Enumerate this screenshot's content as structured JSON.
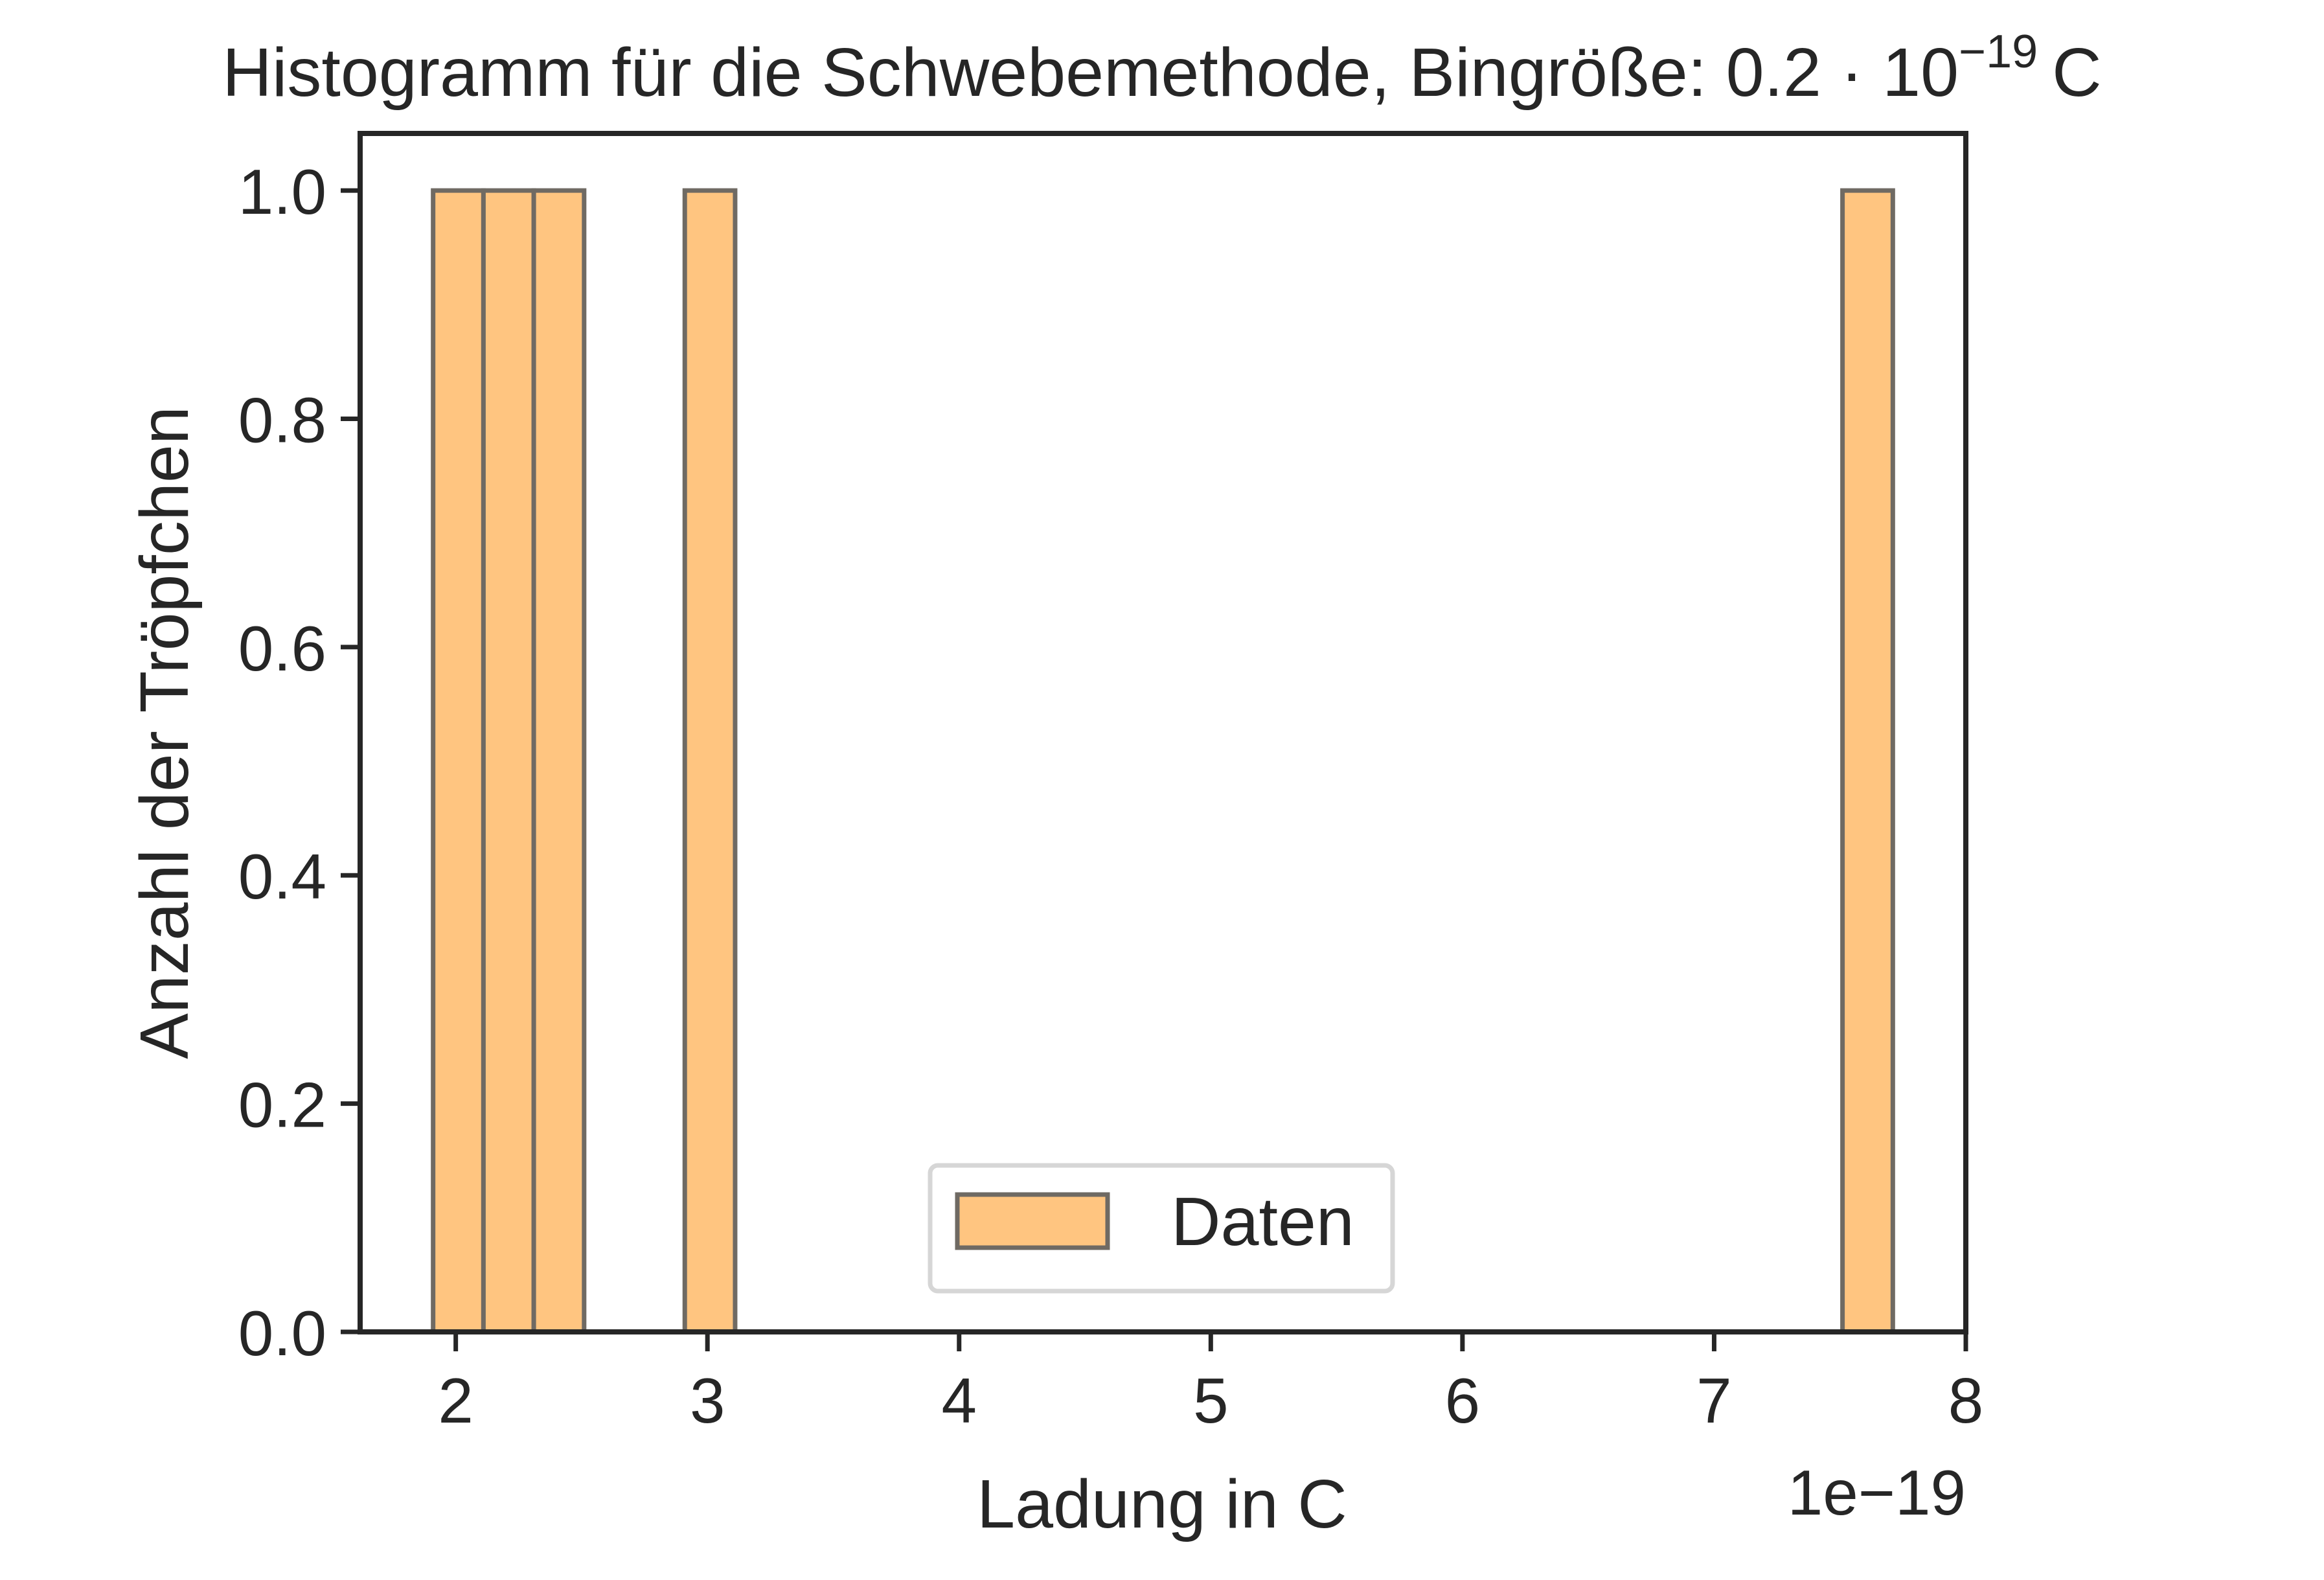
{
  "chart_data": {
    "type": "bar",
    "title_prefix": "Histogramm für die Schwebemethode, Bingröße: ",
    "title_math": "0.2 · 10",
    "title_exp": "−19",
    "title_unit": "C",
    "xlabel": "Ladung in C",
    "ylabel": "Anzahl der Tröpfchen",
    "x_offset_label": "1e−19",
    "xlim": [
      1.62,
      8.0
    ],
    "ylim": [
      0.0,
      1.05
    ],
    "x_ticks": [
      2,
      3,
      4,
      5,
      6,
      7,
      8
    ],
    "x_tick_labels": [
      "2",
      "3",
      "4",
      "5",
      "6",
      "7",
      "8"
    ],
    "y_ticks": [
      0.0,
      0.2,
      0.4,
      0.6,
      0.8,
      1.0
    ],
    "y_tick_labels": [
      "0.0",
      "0.2",
      "0.4",
      "0.6",
      "0.8",
      "1.0"
    ],
    "bin_width": 0.2,
    "bins": [
      {
        "start": 1.91,
        "end": 2.11,
        "count": 1
      },
      {
        "start": 2.11,
        "end": 2.31,
        "count": 1
      },
      {
        "start": 2.31,
        "end": 2.51,
        "count": 1
      },
      {
        "start": 2.91,
        "end": 3.11,
        "count": 1
      },
      {
        "start": 7.51,
        "end": 7.71,
        "count": 1
      }
    ],
    "series": [
      {
        "name": "Daten"
      }
    ],
    "legend": {
      "label": "Daten",
      "placement": "lower center"
    },
    "grid": false,
    "colors": {
      "bar_fill": "#ffc580",
      "bar_edge": "#6f6a63",
      "axis": "#262626",
      "text": "#262626"
    }
  }
}
